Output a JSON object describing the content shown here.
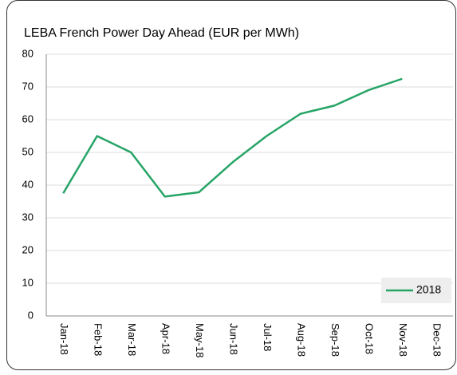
{
  "chart_data": {
    "type": "line",
    "title": "LEBA French Power Day Ahead (EUR per MWh)",
    "categories": [
      "Jan-18",
      "Feb-18",
      "Mar-18",
      "Apr-18",
      "May-18",
      "Jun-18",
      "Jul-18",
      "Aug-18",
      "Sep-18",
      "Oct-18",
      "Nov-18",
      "Dec-18"
    ],
    "series": [
      {
        "name": "2018",
        "color": "#26a466",
        "values": [
          37.5,
          55,
          50,
          36.5,
          37.8,
          47,
          55,
          61.8,
          64.3,
          69,
          72.5,
          null
        ]
      }
    ],
    "ylim": [
      0,
      80
    ],
    "yticks": [
      0,
      10,
      20,
      30,
      40,
      50,
      60,
      70,
      80
    ],
    "grid": true,
    "legend": "bottom-right"
  }
}
